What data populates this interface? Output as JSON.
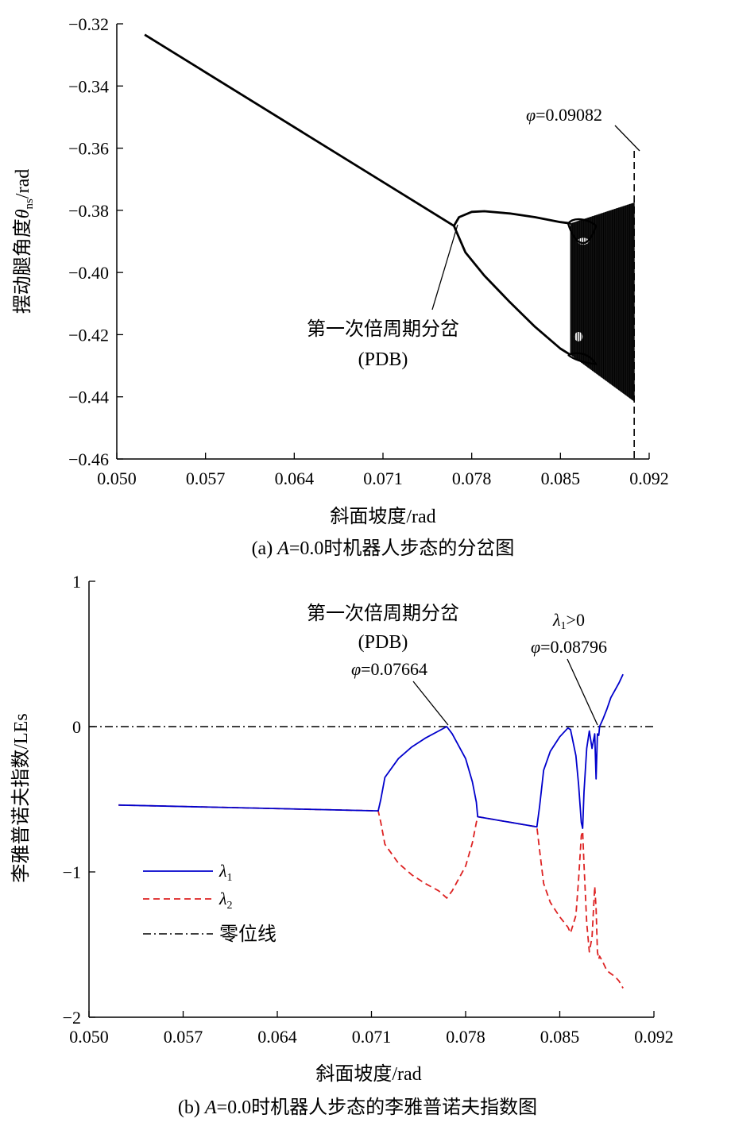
{
  "chart_data": [
    {
      "type": "scatter",
      "panel": "a",
      "caption": "(a) A=0.0时机器人步态的分岔图",
      "caption_parts": {
        "label": "(a) ",
        "italic_var": "A",
        "rest": "=0.0时机器人步态的分岔图"
      },
      "xlabel": "斜面坡度/rad",
      "ylabel": {
        "prefix": "摆动腿角度",
        "var": "θ",
        "sub": "ns",
        "suffix": "/rad"
      },
      "xlim": [
        0.05,
        0.092
      ],
      "ylim": [
        -0.46,
        -0.32
      ],
      "xticks": [
        0.05,
        0.057,
        0.064,
        0.071,
        0.078,
        0.085,
        0.092
      ],
      "xtick_labels": [
        "0.050",
        "0.057",
        "0.064",
        "0.071",
        "0.078",
        "0.085",
        "0.092"
      ],
      "yticks": [
        -0.32,
        -0.34,
        -0.36,
        -0.38,
        -0.4,
        -0.42,
        -0.44,
        -0.46
      ],
      "ytick_labels": [
        "−0.32",
        "−0.34",
        "−0.36",
        "−0.38",
        "−0.40",
        "−0.42",
        "−0.44",
        "−0.46"
      ],
      "grid": false,
      "branches": [
        {
          "x": [
            0.0522,
            0.0766
          ],
          "y": [
            -0.3235,
            -0.385
          ]
        },
        {
          "x": [
            0.0766,
            0.077,
            0.078,
            0.079,
            0.081,
            0.083,
            0.085,
            0.0858
          ],
          "y": [
            -0.385,
            -0.3822,
            -0.3805,
            -0.3803,
            -0.381,
            -0.3822,
            -0.3838,
            -0.3842
          ]
        },
        {
          "x": [
            0.0766,
            0.0775,
            0.079,
            0.081,
            0.083,
            0.085,
            0.0858
          ],
          "y": [
            -0.385,
            -0.3935,
            -0.401,
            -0.4095,
            -0.4175,
            -0.4245,
            -0.4265
          ]
        }
      ],
      "chaos_region": {
        "x": [
          0.0858,
          0.09082
        ],
        "y_upper": [
          -0.3842,
          -0.3775
        ],
        "y_lower": [
          -0.4265,
          -0.4415
        ]
      },
      "vline": {
        "x": 0.09082,
        "style": "dashed"
      },
      "annotations": {
        "phi_label": {
          "var": "φ",
          "text": "=0.09082"
        },
        "pdb_line1": "第一次倍周期分岔",
        "pdb_line2": "(PDB)"
      }
    },
    {
      "type": "line",
      "panel": "b",
      "caption": "(b) A=0.0时机器人步态的李雅普诺夫指数图",
      "caption_parts": {
        "label": "(b) ",
        "italic_var": "A",
        "rest": "=0.0时机器人步态的李雅普诺夫指数图"
      },
      "xlabel": "斜面坡度/rad",
      "ylabel": "李雅普诺夫指数/LEs",
      "xlim": [
        0.05,
        0.092
      ],
      "ylim": [
        -2,
        1
      ],
      "xticks": [
        0.05,
        0.057,
        0.064,
        0.071,
        0.078,
        0.085,
        0.092
      ],
      "xtick_labels": [
        "0.050",
        "0.057",
        "0.064",
        "0.071",
        "0.078",
        "0.085",
        "0.092"
      ],
      "yticks": [
        1,
        0,
        -1,
        -2
      ],
      "ytick_labels": [
        "1",
        "0",
        "−1",
        "−2"
      ],
      "grid": false,
      "legend_position": "bottom-left",
      "series": [
        {
          "name": "λ1",
          "legend_var": "λ",
          "legend_sub": "1",
          "color": "#0000cc",
          "style": "solid",
          "x": [
            0.0522,
            0.0715,
            0.0717,
            0.072,
            0.073,
            0.074,
            0.075,
            0.076,
            0.0766,
            0.077,
            0.078,
            0.0785,
            0.0788,
            0.0789,
            0.0833,
            0.0835,
            0.0838,
            0.0843,
            0.085,
            0.0856,
            0.0858,
            0.0862,
            0.0864,
            0.0866,
            0.0867,
            0.0868,
            0.087,
            0.0872,
            0.0874,
            0.0876,
            0.0877,
            0.0878,
            0.0879,
            0.08796,
            0.0882,
            0.0885,
            0.0888,
            0.0891,
            0.0894,
            0.0897
          ],
          "y": [
            -0.54,
            -0.58,
            -0.5,
            -0.35,
            -0.22,
            -0.14,
            -0.08,
            -0.03,
            0.0,
            -0.05,
            -0.22,
            -0.38,
            -0.52,
            -0.62,
            -0.69,
            -0.55,
            -0.3,
            -0.17,
            -0.07,
            -0.01,
            -0.02,
            -0.2,
            -0.4,
            -0.66,
            -0.7,
            -0.45,
            -0.15,
            -0.03,
            -0.15,
            -0.05,
            -0.36,
            -0.05,
            -0.06,
            0.0,
            0.05,
            0.12,
            0.2,
            0.25,
            0.3,
            0.36
          ]
        },
        {
          "name": "λ2",
          "legend_var": "λ",
          "legend_sub": "2",
          "color": "#dd2222",
          "style": "dashed",
          "x": [
            0.0522,
            0.0715,
            0.0717,
            0.072,
            0.073,
            0.074,
            0.075,
            0.076,
            0.0766,
            0.077,
            0.078,
            0.0785,
            0.0788,
            0.0789,
            0.0833,
            0.0835,
            0.0838,
            0.0843,
            0.085,
            0.0856,
            0.0858,
            0.0862,
            0.0864,
            0.0866,
            0.0867,
            0.0868,
            0.087,
            0.0872,
            0.0874,
            0.0876,
            0.0877,
            0.0878,
            0.0879,
            0.08796,
            0.0882,
            0.0885,
            0.0888,
            0.0891,
            0.0894,
            0.0897
          ],
          "y": [
            -0.54,
            -0.58,
            -0.66,
            -0.81,
            -0.94,
            -1.02,
            -1.08,
            -1.13,
            -1.18,
            -1.13,
            -0.96,
            -0.8,
            -0.66,
            -0.62,
            -0.69,
            -0.85,
            -1.08,
            -1.21,
            -1.31,
            -1.38,
            -1.42,
            -1.3,
            -1.05,
            -0.75,
            -0.72,
            -0.95,
            -1.35,
            -1.55,
            -1.45,
            -1.1,
            -1.25,
            -1.55,
            -1.6,
            -1.58,
            -1.62,
            -1.68,
            -1.7,
            -1.72,
            -1.75,
            -1.8
          ]
        },
        {
          "name": "零位线",
          "color": "#000000",
          "style": "dashdot",
          "x": [
            0.05,
            0.092
          ],
          "y": [
            0,
            0
          ]
        }
      ],
      "annotations": {
        "pdb_line1": "第一次倍周期分岔",
        "pdb_line2": "(PDB)",
        "pdb_phi": {
          "var": "φ",
          "text": "=0.07664"
        },
        "pdb_point": {
          "x": 0.07664,
          "y": 0
        },
        "chaos_lambda": {
          "var": "λ",
          "sub": "1",
          "text": ">0"
        },
        "chaos_phi": {
          "var": "φ",
          "text": "=0.08796"
        },
        "chaos_point": {
          "x": 0.08796,
          "y": 0
        }
      }
    }
  ]
}
